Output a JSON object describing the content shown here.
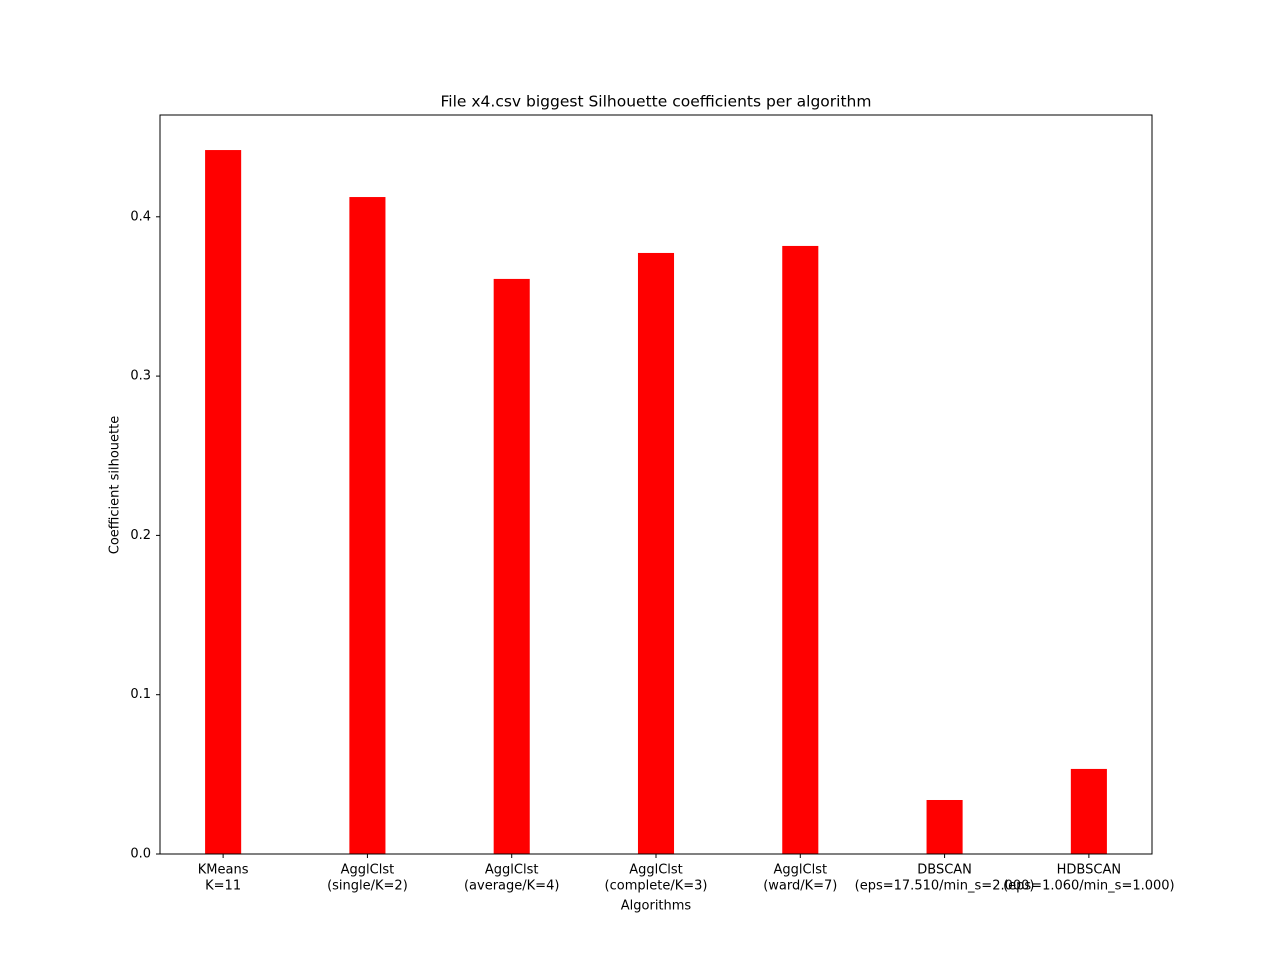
{
  "chart_data": {
    "type": "bar",
    "title": "File x4.csv biggest Silhouette coefficients per algorithm",
    "x_label": "Algorithms",
    "y_label": "Coefficient silhouette",
    "categories": [
      [
        "KMeans",
        "K=11"
      ],
      [
        "AgglClst",
        "(single/K=2)"
      ],
      [
        "AgglClst",
        "(average/K=4)"
      ],
      [
        "AgglClst",
        "(complete/K=3)"
      ],
      [
        "AgglClst",
        "(ward/K=7)"
      ],
      [
        "DBSCAN",
        "(eps=17.510/min_s=2.000)"
      ],
      [
        "HDBSCAN",
        "(eps=1.060/min_s=1.000)"
      ]
    ],
    "values": [
      0.4419,
      0.4124,
      0.361,
      0.3773,
      0.3817,
      0.0339,
      0.0534
    ],
    "color": "#ff0000",
    "ylim": [
      0,
      0.4639
    ],
    "yticks": [
      {
        "value": 0,
        "label": "0.0"
      },
      0.1,
      0.2,
      0.3,
      0.4
    ],
    "grid": false
  }
}
